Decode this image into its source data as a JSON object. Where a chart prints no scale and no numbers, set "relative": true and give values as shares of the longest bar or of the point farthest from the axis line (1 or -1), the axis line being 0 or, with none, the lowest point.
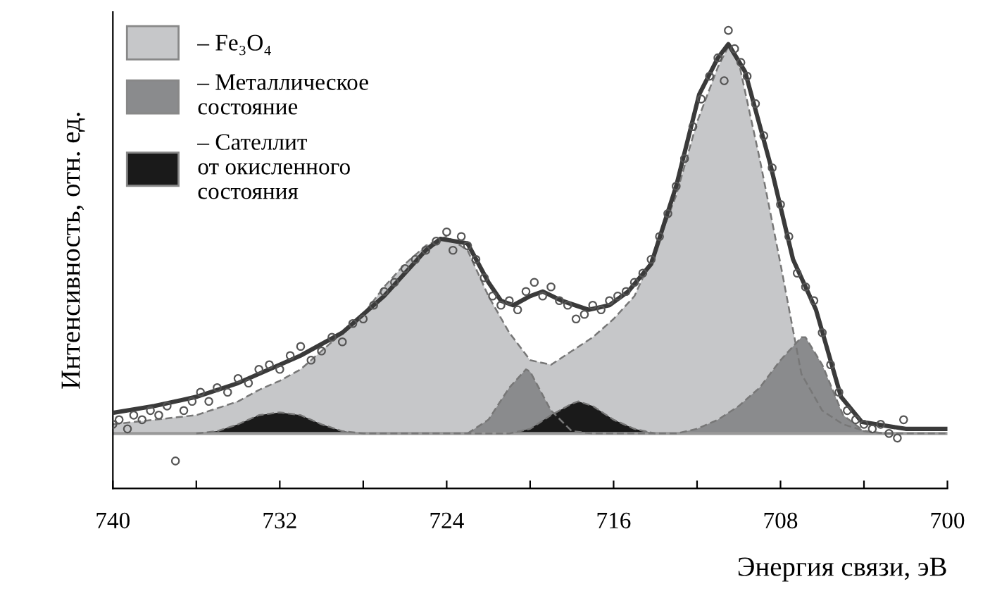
{
  "chart_data": {
    "type": "area",
    "relative": true,
    "xlabel": "Энергия связи, эВ",
    "ylabel": "Интенсивность, отн. ед.",
    "xlim": [
      740,
      700
    ],
    "xticks": [
      740,
      {
        "value": 736,
        "label": null
      },
      732,
      {
        "value": 728,
        "label": null
      },
      724,
      {
        "value": 720,
        "label": null
      },
      716,
      {
        "value": 712,
        "label": null
      },
      708,
      {
        "value": 704,
        "label": null
      },
      700
    ],
    "tick_labels": "x",
    "grid": false,
    "legend": "top left",
    "ref_lines": [
      {
        "axis": "y",
        "value": 0.12,
        "color": "#999999"
      }
    ],
    "series": [
      {
        "name": "– Fe₃O₄",
        "color": "#c6c7c9",
        "x": [
          740,
          739,
          738,
          737,
          736,
          735,
          734,
          733,
          732,
          731,
          730,
          729,
          728,
          727,
          726,
          725,
          724,
          723,
          722,
          721,
          720,
          719,
          718,
          717,
          716,
          715,
          714,
          713,
          712,
          711,
          710.5,
          710,
          709,
          708,
          707,
          706,
          705,
          704,
          703,
          702,
          701,
          700
        ],
        "values": [
          0.14,
          0.145,
          0.15,
          0.155,
          0.16,
          0.175,
          0.19,
          0.215,
          0.235,
          0.26,
          0.3,
          0.34,
          0.38,
          0.44,
          0.49,
          0.53,
          0.55,
          0.52,
          0.42,
          0.34,
          0.28,
          0.27,
          0.3,
          0.33,
          0.37,
          0.42,
          0.52,
          0.64,
          0.8,
          0.92,
          0.965,
          0.93,
          0.72,
          0.49,
          0.25,
          0.17,
          0.14,
          0.126,
          0.12,
          0.12,
          0.12,
          0.12
        ]
      },
      {
        "name": "– Металлическое\nсостояние",
        "color": "#8a8b8d",
        "x": [
          723,
          722,
          721,
          720.2,
          720,
          719,
          718,
          717,
          716,
          715,
          714,
          713,
          712,
          711,
          710,
          709,
          708,
          707,
          706.8,
          706,
          705,
          704,
          703
        ],
        "values": [
          0.12,
          0.15,
          0.22,
          0.26,
          0.255,
          0.17,
          0.125,
          0.12,
          0.12,
          0.12,
          0.12,
          0.12,
          0.13,
          0.15,
          0.18,
          0.22,
          0.28,
          0.33,
          0.33,
          0.27,
          0.16,
          0.125,
          0.12
        ]
      },
      {
        "name": "– Сателлит\nот окисленного\nсостояния",
        "color": "#1a1a1a",
        "x": [
          736,
          735,
          734,
          733,
          732,
          731,
          730,
          729,
          728,
          727,
          726,
          725,
          724,
          723,
          722,
          721,
          720,
          719,
          718,
          717.7,
          717,
          716,
          715,
          714
        ],
        "values": [
          0.12,
          0.125,
          0.14,
          0.16,
          0.166,
          0.16,
          0.14,
          0.125,
          0.12,
          0.12,
          0.12,
          0.12,
          0.12,
          0.12,
          0.12,
          0.12,
          0.13,
          0.16,
          0.185,
          0.19,
          0.18,
          0.15,
          0.13,
          0.12
        ]
      },
      {
        "type": "line",
        "color": "#3a3a3a",
        "x": [
          740,
          738,
          736,
          734,
          733,
          731,
          729,
          727,
          726,
          725,
          724.3,
          723,
          722,
          721.4,
          720.8,
          720,
          719.4,
          718.5,
          717.2,
          716.2,
          715.3,
          714.2,
          713,
          711.9,
          711,
          710.5,
          709.7,
          708.5,
          707.4,
          706.3,
          705.1,
          704.1,
          702,
          700
        ],
        "values": [
          0.165,
          0.18,
          0.2,
          0.23,
          0.25,
          0.29,
          0.34,
          0.42,
          0.47,
          0.52,
          0.545,
          0.535,
          0.45,
          0.41,
          0.4,
          0.42,
          0.43,
          0.41,
          0.39,
          0.4,
          0.43,
          0.49,
          0.66,
          0.86,
          0.94,
          0.97,
          0.91,
          0.71,
          0.5,
          0.39,
          0.2,
          0.145,
          0.13,
          0.13
        ]
      },
      {
        "type": "scatter",
        "marker": "circle",
        "color": "#555555",
        "x": [
          740,
          739.7,
          739.3,
          739,
          738.6,
          738.2,
          737.8,
          737.4,
          737,
          736.6,
          736.2,
          735.8,
          735.4,
          735,
          734.5,
          734,
          733.5,
          733,
          732.5,
          732,
          731.5,
          731,
          730.5,
          730,
          729.5,
          729,
          728.5,
          728,
          727.5,
          727,
          726.5,
          726,
          725.5,
          725,
          724.5,
          724,
          723.7,
          723.3,
          723,
          722.6,
          722.2,
          721.8,
          721.4,
          721,
          720.6,
          720.2,
          719.8,
          719.4,
          719,
          718.6,
          718.2,
          717.8,
          717.4,
          717,
          716.6,
          716.2,
          715.8,
          715.4,
          715,
          714.6,
          714.2,
          713.8,
          713.4,
          713,
          712.6,
          712.2,
          711.8,
          711.4,
          711,
          710.7,
          710.5,
          710.2,
          709.9,
          709.6,
          709.2,
          708.8,
          708.4,
          708,
          707.6,
          707.2,
          706.8,
          706.4,
          706,
          705.6,
          705.2,
          704.8,
          704.4,
          704,
          703.6,
          703.2,
          702.8,
          702.4,
          702.1
        ],
        "values": [
          0.14,
          0.15,
          0.13,
          0.16,
          0.15,
          0.17,
          0.16,
          0.18,
          0.06,
          0.17,
          0.19,
          0.21,
          0.19,
          0.22,
          0.21,
          0.24,
          0.23,
          0.26,
          0.27,
          0.26,
          0.29,
          0.31,
          0.28,
          0.3,
          0.33,
          0.32,
          0.36,
          0.37,
          0.4,
          0.43,
          0.45,
          0.48,
          0.5,
          0.52,
          0.54,
          0.56,
          0.52,
          0.55,
          0.53,
          0.5,
          0.46,
          0.42,
          0.4,
          0.41,
          0.39,
          0.43,
          0.45,
          0.42,
          0.44,
          0.41,
          0.4,
          0.37,
          0.38,
          0.4,
          0.39,
          0.41,
          0.42,
          0.43,
          0.45,
          0.47,
          0.5,
          0.55,
          0.6,
          0.66,
          0.72,
          0.79,
          0.85,
          0.9,
          0.94,
          0.89,
          1.0,
          0.96,
          0.93,
          0.9,
          0.84,
          0.77,
          0.7,
          0.62,
          0.55,
          0.47,
          0.44,
          0.41,
          0.34,
          0.27,
          0.21,
          0.17,
          0.15,
          0.14,
          0.13,
          0.14,
          0.12,
          0.11,
          0.15
        ]
      }
    ]
  }
}
